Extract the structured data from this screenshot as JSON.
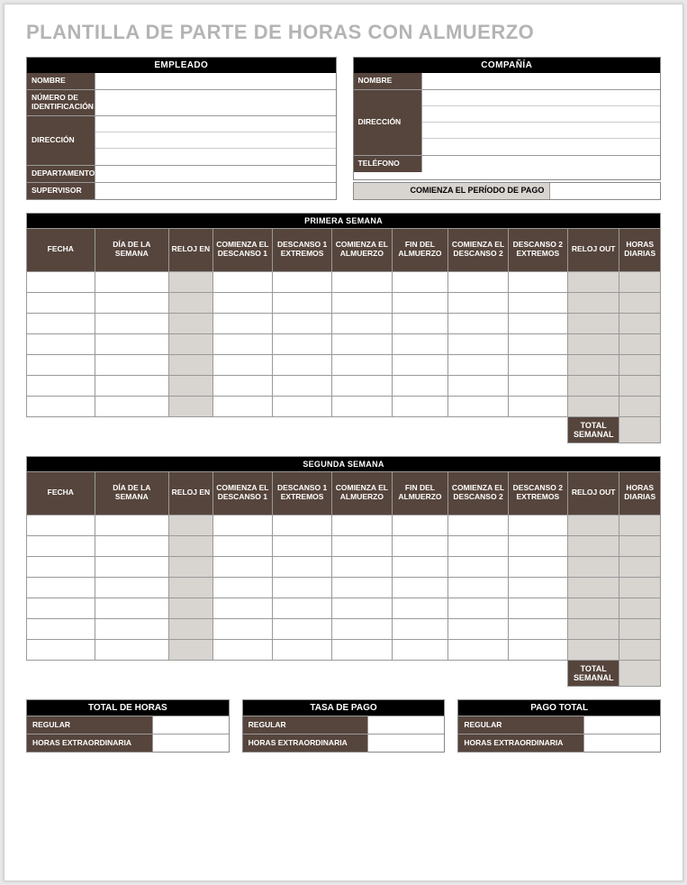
{
  "title": "PLANTILLA DE PARTE DE HORAS CON ALMUERZO",
  "colors": {
    "header_dark": "#56453c",
    "header_black": "#000000",
    "shaded_cell": "#d8d4d0",
    "title_grey": "#b4b4b4",
    "border": "#999999",
    "background": "#ffffff"
  },
  "employee_box": {
    "title": "EMPLEADO",
    "rows": [
      {
        "label": "NOMBRE",
        "lines": 1
      },
      {
        "label": "NÚMERO DE IDENTIFICACIÓN",
        "lines": 1
      },
      {
        "label": "DIRECCIÓN",
        "lines": 3
      },
      {
        "label": "DEPARTAMENTO",
        "lines": 1
      },
      {
        "label": "SUPERVISOR",
        "lines": 1
      }
    ]
  },
  "company_box": {
    "title": "COMPAÑÍA",
    "rows": [
      {
        "label": "NOMBRE",
        "lines": 1
      },
      {
        "label": "DIRECCIÓN",
        "lines": 4
      },
      {
        "label": "TELÉFONO",
        "lines": 1
      }
    ],
    "pay_period_label": "COMIENZA EL PERÍODO DE PAGO",
    "pay_period_value": ""
  },
  "week_columns": [
    "FECHA",
    "DÍA DE LA SEMANA",
    "RELOJ EN",
    "COMIENZA EL DESCANSO 1",
    "DESCANSO 1 EXTREMOS",
    "COMIENZA EL ALMUERZO",
    "FIN DEL ALMUERZO",
    "COMIENZA EL DESCANSO 2",
    "DESCANSO 2 EXTREMOS",
    "RELOJ OUT",
    "HORAS DIARIAS"
  ],
  "col_widths_pct": [
    11,
    12,
    7,
    9.5,
    9.5,
    9.5,
    9,
    9.5,
    9.5,
    7,
    8.5
  ],
  "shaded_cols": [
    2,
    9,
    10
  ],
  "week1": {
    "title": "PRIMERA SEMANA",
    "rows": 7,
    "total_label": "TOTAL SEMANAL",
    "total_value": ""
  },
  "week2": {
    "title": "SEGUNDA SEMANA",
    "rows": 7,
    "total_label": "TOTAL SEMANAL",
    "total_value": ""
  },
  "footer": [
    {
      "title": "TOTAL DE HORAS",
      "items": [
        {
          "label": "REGULAR",
          "value": ""
        },
        {
          "label": "HORAS EXTRAORDINARIA",
          "value": ""
        }
      ]
    },
    {
      "title": "TASA DE PAGO",
      "items": [
        {
          "label": "REGULAR",
          "value": ""
        },
        {
          "label": "HORAS EXTRAORDINARIA",
          "value": ""
        }
      ]
    },
    {
      "title": "PAGO TOTAL",
      "items": [
        {
          "label": "REGULAR",
          "value": ""
        },
        {
          "label": "HORAS EXTRAORDINARIA",
          "value": ""
        }
      ]
    }
  ]
}
